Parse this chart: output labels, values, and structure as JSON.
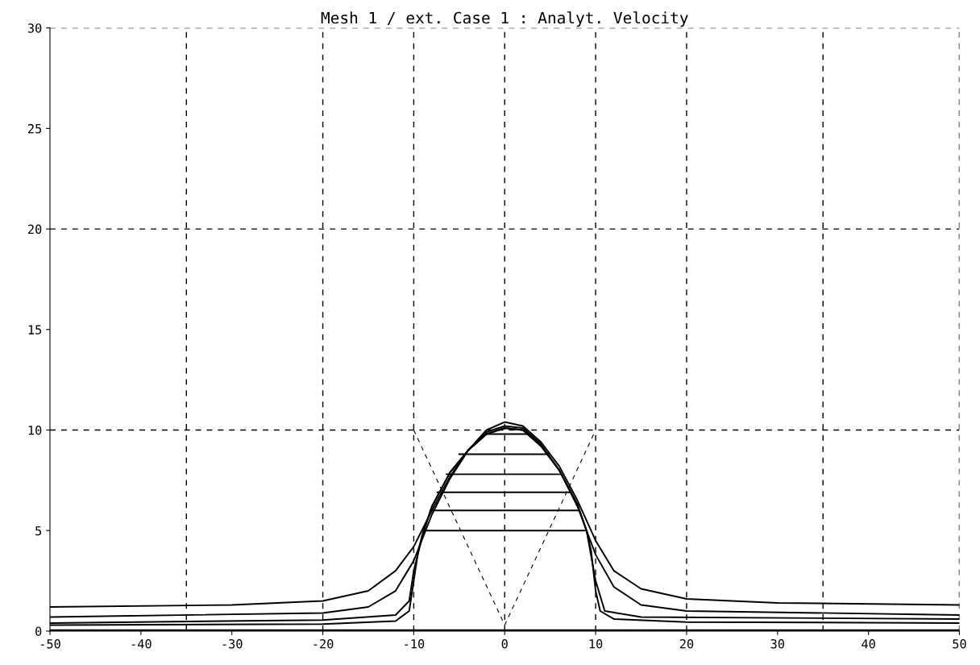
{
  "chart_data": {
    "type": "line",
    "title": "Mesh 1 / ext. Case 1 : Analyt. Velocity",
    "xlim": [
      -50,
      50
    ],
    "xticks": [
      -50,
      -40,
      -30,
      -20,
      -10,
      0,
      10,
      20,
      30,
      40,
      50
    ],
    "ylim": [
      0,
      30
    ],
    "yticks": [
      0,
      5,
      10,
      15,
      20,
      25,
      30
    ],
    "grid": false,
    "legend": false,
    "marker": "none",
    "ref_lines": [
      {
        "axis": "x",
        "value": -35,
        "color": "#000000",
        "line_style": "dashed"
      },
      {
        "axis": "x",
        "value": -20,
        "color": "#000000",
        "line_style": "dashed"
      },
      {
        "axis": "x",
        "value": -10,
        "color": "#000000",
        "line_style": "dashed"
      },
      {
        "axis": "x",
        "value": 0,
        "color": "#000000",
        "line_style": "dashed"
      },
      {
        "axis": "x",
        "value": 10,
        "color": "#000000",
        "line_style": "dashed"
      },
      {
        "axis": "x",
        "value": 20,
        "color": "#000000",
        "line_style": "dashed"
      },
      {
        "axis": "x",
        "value": 35,
        "color": "#000000",
        "line_style": "dashed"
      },
      {
        "axis": "x",
        "value": 50,
        "color": "#000000",
        "line_style": "dashed"
      },
      {
        "axis": "y",
        "value": 10,
        "color": "#000000",
        "line_style": "dashed"
      },
      {
        "axis": "y",
        "value": 20,
        "color": "#000000",
        "line_style": "dashed"
      },
      {
        "axis": "y",
        "value": 30,
        "color": "#000000",
        "line_style": "dashed"
      }
    ],
    "series": [
      {
        "color": "#000000",
        "x": [
          -50,
          -30,
          -20,
          -15,
          -12,
          -10,
          -8,
          -6,
          -4,
          -2,
          0,
          2,
          4,
          6,
          8,
          10,
          12,
          15,
          20,
          30,
          50
        ],
        "values": [
          1.2,
          1.3,
          1.5,
          2.0,
          3.0,
          4.2,
          6.0,
          7.7,
          9.0,
          10.0,
          10.4,
          10.2,
          9.4,
          8.2,
          6.5,
          4.5,
          3.0,
          2.1,
          1.6,
          1.4,
          1.3
        ]
      },
      {
        "color": "#000000",
        "x": [
          -50,
          -20,
          -15,
          -12,
          -10,
          -8,
          -6,
          -4,
          -2,
          0,
          2,
          4,
          6,
          8,
          10,
          12,
          15,
          20,
          50
        ],
        "values": [
          0.7,
          0.9,
          1.2,
          2.0,
          3.5,
          5.8,
          7.6,
          9.0,
          9.9,
          10.2,
          10.1,
          9.3,
          8.0,
          6.2,
          3.8,
          2.2,
          1.3,
          1.0,
          0.8
        ]
      },
      {
        "color": "#000000",
        "x": [
          -50,
          -20,
          -12,
          -10.5,
          -10,
          -9,
          -8,
          -6,
          -4,
          -2,
          0,
          2,
          4,
          6,
          8,
          9,
          10,
          11,
          15,
          50
        ],
        "values": [
          0.4,
          0.55,
          0.8,
          1.5,
          3.0,
          4.8,
          6.2,
          7.9,
          9.0,
          9.8,
          10.1,
          10.0,
          9.2,
          8.0,
          6.3,
          5.0,
          2.5,
          1.0,
          0.7,
          0.6
        ]
      },
      {
        "color": "#000000",
        "x": [
          -50,
          -20,
          -12,
          -10.5,
          -10,
          -9.5,
          -9,
          -8,
          -6,
          -4,
          -2,
          0,
          2,
          4,
          6,
          8,
          9,
          9.5,
          10,
          10.5,
          12,
          20,
          50
        ],
        "values": [
          0.3,
          0.35,
          0.5,
          1.0,
          2.5,
          4.0,
          4.9,
          6.2,
          7.9,
          9.0,
          9.8,
          10.1,
          10.0,
          9.2,
          8.0,
          6.3,
          5.0,
          4.0,
          2.0,
          1.0,
          0.6,
          0.45,
          0.4
        ]
      },
      {
        "color": "#000000",
        "x": [
          -50,
          50
        ],
        "values": [
          0.05,
          0.05
        ]
      },
      {
        "color": "#000000",
        "x": [
          -1.9,
          2.4
        ],
        "values": [
          9.8,
          9.8
        ]
      },
      {
        "color": "#000000",
        "x": [
          -5.0,
          4.8
        ],
        "values": [
          8.8,
          8.8
        ]
      },
      {
        "color": "#000000",
        "x": [
          -6.4,
          6.2
        ],
        "values": [
          7.8,
          7.8
        ]
      },
      {
        "color": "#000000",
        "x": [
          -7.4,
          7.2
        ],
        "values": [
          6.9,
          6.9
        ]
      },
      {
        "color": "#000000",
        "x": [
          -8.2,
          8.1
        ],
        "values": [
          6.0,
          6.0
        ]
      },
      {
        "color": "#000000",
        "x": [
          -8.8,
          8.8
        ],
        "values": [
          5.0,
          5.0
        ]
      },
      {
        "color": "#000000",
        "line_style": "dashed",
        "x": [
          -10,
          0,
          10
        ],
        "values": [
          10,
          0.3,
          10
        ]
      }
    ]
  }
}
